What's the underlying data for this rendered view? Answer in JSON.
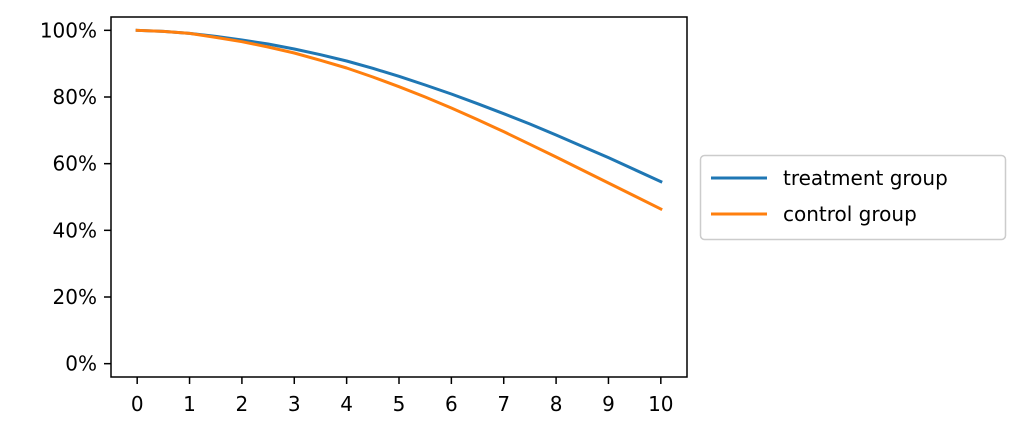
{
  "chart_data": {
    "type": "line",
    "title": "",
    "xlabel": "",
    "ylabel": "",
    "xlim": [
      -0.5,
      10.5
    ],
    "ylim": [
      -4,
      104
    ],
    "x_ticks": [
      "0",
      "1",
      "2",
      "3",
      "4",
      "5",
      "6",
      "7",
      "8",
      "9",
      "10"
    ],
    "y_ticks": [
      {
        "value": 0,
        "label": "0%"
      },
      {
        "value": 20,
        "label": "20%"
      },
      {
        "value": 40,
        "label": "40%"
      },
      {
        "value": 60,
        "label": "60%"
      },
      {
        "value": 80,
        "label": "80%"
      },
      {
        "value": 100,
        "label": "100%"
      }
    ],
    "grid": false,
    "legend_position": "right, outside plot",
    "x": [
      0,
      0.5,
      1,
      1.5,
      2,
      2.5,
      3,
      3.5,
      4,
      4.5,
      5,
      5.5,
      6,
      6.5,
      7,
      7.5,
      8,
      8.5,
      9,
      9.5,
      10
    ],
    "series": [
      {
        "name": "treatment group",
        "color": "#1f77b4",
        "values": [
          100,
          99.7,
          99.1,
          98.2,
          97.1,
          95.9,
          94.4,
          92.7,
          90.8,
          88.6,
          86.2,
          83.6,
          80.9,
          78.0,
          75.0,
          71.9,
          68.6,
          65.2,
          61.8,
          58.2,
          54.6
        ]
      },
      {
        "name": "control group",
        "color": "#ff7f0e",
        "values": [
          100,
          99.7,
          99.1,
          97.9,
          96.6,
          95.0,
          93.2,
          91.0,
          88.7,
          86.0,
          83.1,
          80.0,
          76.7,
          73.2,
          69.6,
          65.8,
          62.0,
          58.1,
          54.2,
          50.3,
          46.4
        ]
      }
    ]
  }
}
